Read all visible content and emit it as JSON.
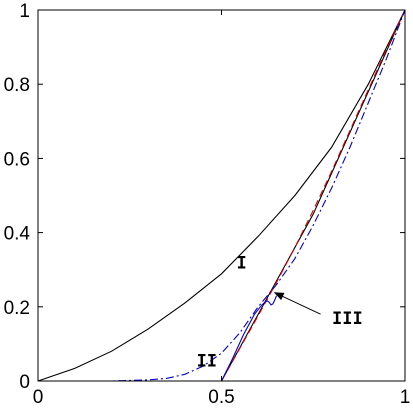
{
  "chart_data": {
    "type": "line",
    "title": "",
    "xlabel": "",
    "ylabel": "",
    "xlim": [
      0,
      1
    ],
    "ylim": [
      0,
      1
    ],
    "grid": false,
    "legend": "none",
    "xticks": [
      {
        "value": 0,
        "label": "0"
      },
      {
        "value": 0.5,
        "label": "0.5"
      },
      {
        "value": 1,
        "label": "1"
      }
    ],
    "yticks": [
      {
        "value": 0,
        "label": "0"
      },
      {
        "value": 0.2,
        "label": "0.2"
      },
      {
        "value": 0.4,
        "label": "0.4"
      },
      {
        "value": 0.6,
        "label": "0.6"
      },
      {
        "value": 0.8,
        "label": "0.8"
      },
      {
        "value": 1,
        "label": "1"
      }
    ],
    "series": [
      {
        "color": "#000000",
        "style": "solid",
        "x": [
          0,
          0.1,
          0.2,
          0.3,
          0.4,
          0.5,
          0.6,
          0.7,
          0.8,
          0.9,
          1.0
        ],
        "y": [
          0,
          0.034,
          0.08,
          0.14,
          0.21,
          0.289,
          0.39,
          0.5,
          0.63,
          0.8,
          1.0
        ]
      },
      {
        "color": "#000000",
        "style": "solid",
        "x": [
          0.5,
          0.55,
          0.6,
          0.65,
          0.7,
          0.75,
          0.8,
          0.85,
          0.9,
          0.95,
          1.0
        ],
        "y": [
          0,
          0.09,
          0.18,
          0.27,
          0.36,
          0.45,
          0.56,
          0.67,
          0.78,
          0.89,
          1.0
        ]
      },
      {
        "color": "#dd0000",
        "style": "dashed",
        "x": [
          0.5,
          0.55,
          0.6,
          0.65,
          0.7,
          0.75,
          0.8,
          0.85,
          0.9,
          0.95,
          1.0
        ],
        "y": [
          0,
          0.088,
          0.176,
          0.266,
          0.36,
          0.46,
          0.565,
          0.675,
          0.785,
          0.895,
          1.0
        ]
      },
      {
        "color": "#0000cc",
        "style": "solid",
        "x": [
          0.5,
          0.53,
          0.56,
          0.59,
          0.61,
          0.62,
          0.625,
          0.63,
          0.635,
          0.64,
          0.645,
          0.65
        ],
        "y": [
          0,
          0.06,
          0.125,
          0.18,
          0.205,
          0.214,
          0.216,
          0.212,
          0.205,
          0.208,
          0.218,
          0.23
        ]
      },
      {
        "color": "#0000cc",
        "style": "dashdot",
        "x": [
          0,
          0.1,
          0.2,
          0.3,
          0.35,
          0.4,
          0.45,
          0.5,
          0.55,
          0.6,
          0.65,
          0.7,
          0.75,
          0.8,
          0.85,
          0.9,
          0.95,
          1.0
        ],
        "y": [
          0,
          0,
          0,
          0.003,
          0.007,
          0.018,
          0.04,
          0.075,
          0.13,
          0.2,
          0.26,
          0.33,
          0.42,
          0.52,
          0.63,
          0.75,
          0.87,
          1.0
        ]
      }
    ],
    "annotations": [
      {
        "text": "I",
        "x": 0.555,
        "y": 0.32
      },
      {
        "text": "II",
        "x": 0.46,
        "y": 0.055
      },
      {
        "text": "III",
        "x": 0.843,
        "y": 0.17
      }
    ],
    "arrow": {
      "from_x": 0.77,
      "from_y": 0.18,
      "to_x": 0.645,
      "to_y": 0.238
    }
  }
}
